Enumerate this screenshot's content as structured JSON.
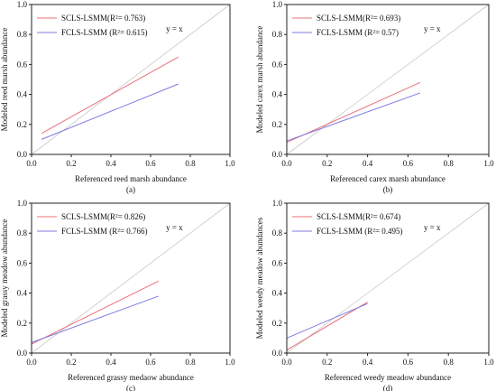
{
  "chart_data": [
    {
      "type": "line",
      "panel_label": "(a)",
      "xlabel": "Referenced reed marsh abundance",
      "ylabel": "Modeled reed marsh abundance",
      "xlim": [
        0,
        1
      ],
      "ylim": [
        0,
        1
      ],
      "ticks": [
        "0.0",
        "0.2",
        "0.4",
        "0.6",
        "0.8",
        "1.0"
      ],
      "identity_label": "y = x",
      "series": [
        {
          "name": "SCLS-LSMM(R²= 0.763)",
          "color": "#e8707a",
          "x": [
            0.05,
            0.74
          ],
          "y": [
            0.14,
            0.65
          ]
        },
        {
          "name": "FCLS-LSMM (R²= 0.615)",
          "color": "#7c7ce0",
          "x": [
            0.05,
            0.74
          ],
          "y": [
            0.1,
            0.47
          ]
        }
      ],
      "legend_position": "top-left",
      "grid": false
    },
    {
      "type": "line",
      "panel_label": "(b)",
      "xlabel": "Referenced carex marsh abundance",
      "ylabel": "Modeled carex marsh abundance",
      "xlim": [
        0,
        1
      ],
      "ylim": [
        0,
        1
      ],
      "ticks": [
        "0.0",
        "0.2",
        "0.4",
        "0.6",
        "0.8",
        "1.0"
      ],
      "identity_label": "y = x",
      "series": [
        {
          "name": "SCLS-LSMM(R²= 0.693)",
          "color": "#e8707a",
          "x": [
            0.0,
            0.66
          ],
          "y": [
            0.08,
            0.48
          ]
        },
        {
          "name": "FCLS-LSMM (R²= 0.57)",
          "color": "#7c7ce0",
          "x": [
            0.0,
            0.66
          ],
          "y": [
            0.09,
            0.41
          ]
        }
      ],
      "legend_position": "top-left",
      "grid": false
    },
    {
      "type": "line",
      "panel_label": "(c)",
      "xlabel": "Referenced grassy medaow abundance",
      "ylabel": "Modeled grassy meadow abundance",
      "xlim": [
        0,
        1
      ],
      "ylim": [
        0,
        1
      ],
      "ticks": [
        "0.0",
        "0.2",
        "0.4",
        "0.6",
        "0.8",
        "1.0"
      ],
      "identity_label": "y = x",
      "series": [
        {
          "name": "SCLS-LSMM(R²= 0.826)",
          "color": "#e8707a",
          "x": [
            0.0,
            0.64
          ],
          "y": [
            0.06,
            0.48
          ]
        },
        {
          "name": "FCLS-LSMM (R²= 0.766)",
          "color": "#7c7ce0",
          "x": [
            0.0,
            0.64
          ],
          "y": [
            0.07,
            0.38
          ]
        }
      ],
      "legend_position": "top-left",
      "grid": false
    },
    {
      "type": "line",
      "panel_label": "(d)",
      "xlabel": "Referenced weedy meadow abundance",
      "ylabel": "Modeled weedy meadow abundances",
      "xlim": [
        0,
        1
      ],
      "ylim": [
        0,
        1
      ],
      "ticks": [
        "0.0",
        "0.2",
        "0.4",
        "0.6",
        "0.8",
        "1.0"
      ],
      "identity_label": "y = x",
      "series": [
        {
          "name": "SCLS-LSMM(R²= 0.674)",
          "color": "#e8707a",
          "x": [
            0.0,
            0.4
          ],
          "y": [
            0.02,
            0.34
          ]
        },
        {
          "name": "FCLS-LSMM (R²= 0.495)",
          "color": "#7c7ce0",
          "x": [
            0.0,
            0.4
          ],
          "y": [
            0.1,
            0.33
          ]
        }
      ],
      "legend_position": "top-left",
      "grid": false
    }
  ]
}
